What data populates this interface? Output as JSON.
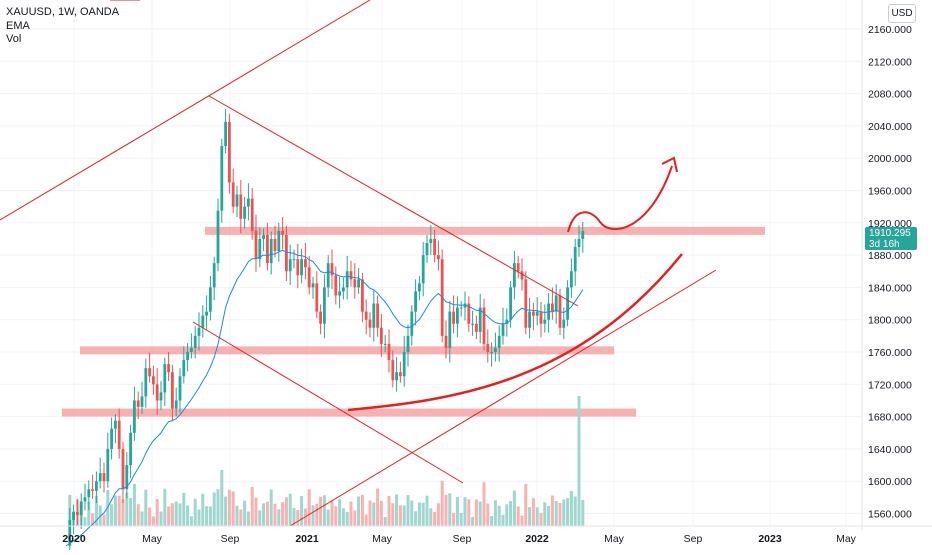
{
  "legend": {
    "symbol": "XAUUSD, 1W, OANDA",
    "indicator_1": "EMA",
    "indicator_2": "Vol"
  },
  "currency_label": "USD",
  "last_price": {
    "value": "1910.295",
    "countdown": "3d 16h",
    "color": "#26a69a"
  },
  "colors": {
    "bull": "#26a69a",
    "bear": "#ef5350",
    "ema": "#1e88e5",
    "drawing": "#e52020",
    "zone": "#f6a3a3"
  },
  "chart_data": {
    "type": "candlestick",
    "ylim": [
      1540,
      2180
    ],
    "y_ticks": [
      "2160.000",
      "2120.000",
      "2080.000",
      "2040.000",
      "2000.000",
      "1960.000",
      "1920.000",
      "1880.000",
      "1840.000",
      "1800.000",
      "1760.000",
      "1720.000",
      "1680.000",
      "1640.000",
      "1600.000",
      "1560.000"
    ],
    "x_ticks": [
      "2020",
      "May",
      "Sep",
      "2021",
      "May",
      "Sep",
      "2022",
      "May",
      "Sep",
      "2023",
      "May"
    ],
    "zones": [
      1910,
      1762,
      1685
    ],
    "closes": [
      1520,
      1552,
      1562,
      1558,
      1575,
      1580,
      1590,
      1588,
      1600,
      1610,
      1600,
      1640,
      1665,
      1675,
      1640,
      1590,
      1620,
      1660,
      1700,
      1692,
      1705,
      1740,
      1730,
      1720,
      1700,
      1710,
      1745,
      1735,
      1690,
      1700,
      1730,
      1750,
      1760,
      1765,
      1780,
      1790,
      1805,
      1810,
      1840,
      1870,
      1935,
      2015,
      2045,
      1970,
      1940,
      1955,
      1925,
      1940,
      1950,
      1910,
      1875,
      1900,
      1905,
      1870,
      1900,
      1885,
      1910,
      1905,
      1860,
      1875,
      1875,
      1855,
      1875,
      1865,
      1840,
      1845,
      1810,
      1795,
      1840,
      1870,
      1855,
      1830,
      1835,
      1840,
      1860,
      1850,
      1840,
      1850,
      1810,
      1800,
      1790,
      1820,
      1790,
      1770,
      1770,
      1750,
      1725,
      1735,
      1730,
      1760,
      1780,
      1810,
      1835,
      1845,
      1880,
      1895,
      1900,
      1880,
      1875,
      1780,
      1765,
      1810,
      1795,
      1815,
      1815,
      1820,
      1795,
      1795,
      1785,
      1815,
      1770,
      1760,
      1760,
      1765,
      1780,
      1795,
      1800,
      1840,
      1870,
      1860,
      1850,
      1790,
      1810,
      1805,
      1810,
      1795,
      1800,
      1820,
      1810,
      1830,
      1790,
      1800,
      1840,
      1860,
      1890,
      1900,
      1910
    ],
    "volume_scale_top": 1710
  }
}
